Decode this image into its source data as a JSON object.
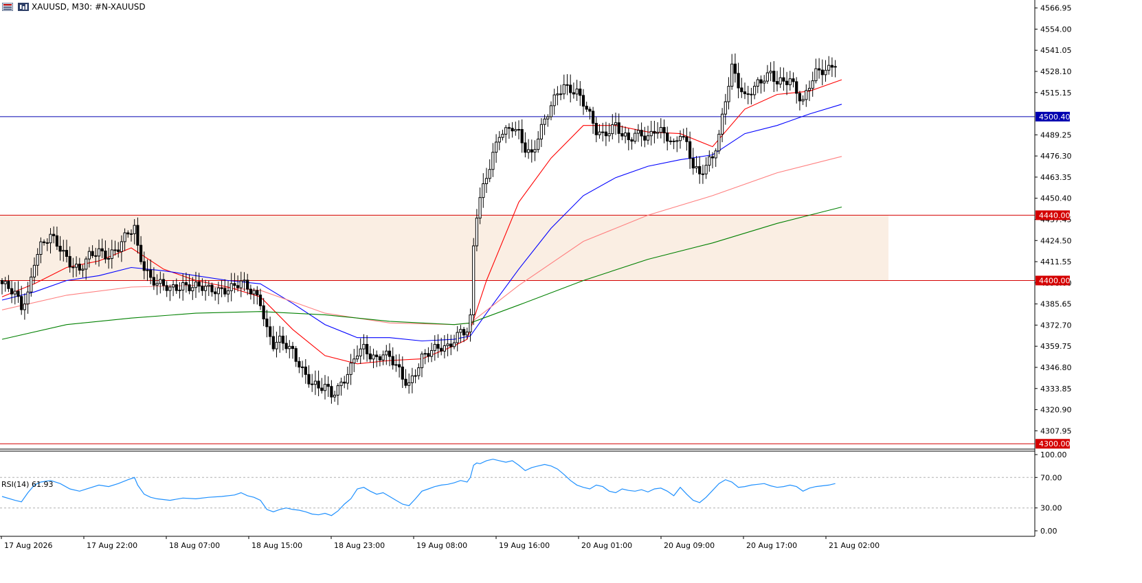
{
  "header": {
    "symbol": "XAUUSD",
    "timeframe": "M30:",
    "instrument": "#N-XAUUSD"
  },
  "icons": [
    "trading-menu-icon",
    "chart-type-icon"
  ],
  "colors": {
    "up_candle": "#ffffff",
    "down_candle": "#000000",
    "ma_fast": "#ff0000",
    "ma_mid": "#0000ff",
    "ma_slow": "#ff7f7f",
    "ma_long": "#008000",
    "rsi_line": "#1e90ff",
    "zone_fill": "#faeee3",
    "level_red": "#d40000",
    "level_blue": "#0000b0"
  },
  "price_axis": {
    "ticks": [
      "4566.95",
      "4554.00",
      "4541.05",
      "4528.10",
      "4515.15",
      "4489.25",
      "4476.30",
      "4463.35",
      "4450.40",
      "4437.45",
      "4424.50",
      "4411.55",
      "4398.60",
      "4385.65",
      "4372.70",
      "4359.75",
      "4346.80",
      "4333.85",
      "4320.90",
      "4307.95"
    ],
    "labels": [
      {
        "text": "4500.40",
        "value": 4500.4,
        "color": "#0000b0"
      },
      {
        "text": "4440.00",
        "value": 4440.0,
        "color": "#d40000"
      },
      {
        "text": "4400.00",
        "value": 4400.0,
        "color": "#d40000"
      },
      {
        "text": "4300.00",
        "value": 4300.0,
        "color": "#d40000"
      }
    ]
  },
  "time_axis": {
    "labels": [
      "17 Aug 2026",
      "17 Aug 22:00",
      "18 Aug 07:00",
      "18 Aug 15:00",
      "18 Aug 23:00",
      "19 Aug 08:00",
      "19 Aug 16:00",
      "20 Aug 01:00",
      "20 Aug 09:00",
      "20 Aug 17:00",
      "21 Aug 02:00"
    ]
  },
  "rsi": {
    "title": "RSI(14) 61.93",
    "ticks": [
      "100.00",
      "70.00",
      "30.00",
      "0.00"
    ],
    "levels": [
      70,
      30
    ]
  },
  "chart_data": {
    "type": "candlestick",
    "symbol": "XAUUSD",
    "timeframe": "M30",
    "ylim": [
      4298,
      4571
    ],
    "rsi_ylim": [
      0,
      100
    ],
    "grid": false,
    "horizontal_lines": [
      4500.4,
      4440.0,
      4400.0,
      4300.0
    ],
    "zone": {
      "from": 4400.0,
      "to": 4440.0
    },
    "close_path": [
      [
        0,
        4398
      ],
      [
        4,
        4391
      ],
      [
        6,
        4384
      ],
      [
        8,
        4392
      ],
      [
        10,
        4413
      ],
      [
        12,
        4421
      ],
      [
        15,
        4426
      ],
      [
        18,
        4420
      ],
      [
        21,
        4412
      ],
      [
        24,
        4406
      ],
      [
        27,
        4414
      ],
      [
        30,
        4418
      ],
      [
        33,
        4416
      ],
      [
        36,
        4420
      ],
      [
        39,
        4428
      ],
      [
        41,
        4432
      ],
      [
        42,
        4420
      ],
      [
        44,
        4409
      ],
      [
        46,
        4402
      ],
      [
        48,
        4398
      ],
      [
        52,
        4394
      ],
      [
        56,
        4398
      ],
      [
        60,
        4396
      ],
      [
        64,
        4394
      ],
      [
        68,
        4395
      ],
      [
        72,
        4396
      ],
      [
        74,
        4398
      ],
      [
        76,
        4395
      ],
      [
        78,
        4393
      ],
      [
        80,
        4388
      ],
      [
        82,
        4370
      ],
      [
        84,
        4360
      ],
      [
        86,
        4362
      ],
      [
        88,
        4360
      ],
      [
        90,
        4357
      ],
      [
        92,
        4350
      ],
      [
        94,
        4342
      ],
      [
        96,
        4336
      ],
      [
        98,
        4333
      ],
      [
        100,
        4335
      ],
      [
        102,
        4331
      ],
      [
        104,
        4335
      ],
      [
        106,
        4340
      ],
      [
        108,
        4346
      ],
      [
        110,
        4355
      ],
      [
        112,
        4358
      ],
      [
        114,
        4355
      ],
      [
        116,
        4353
      ],
      [
        118,
        4356
      ],
      [
        120,
        4352
      ],
      [
        122,
        4347
      ],
      [
        124,
        4340
      ],
      [
        126,
        4337
      ],
      [
        128,
        4345
      ],
      [
        130,
        4353
      ],
      [
        132,
        4355
      ],
      [
        134,
        4357
      ],
      [
        136,
        4359
      ],
      [
        138,
        4360
      ],
      [
        140,
        4365
      ],
      [
        142,
        4369
      ],
      [
        144,
        4368
      ],
      [
        145,
        4375
      ],
      [
        146,
        4420
      ],
      [
        147,
        4440
      ],
      [
        148,
        4450
      ],
      [
        150,
        4465
      ],
      [
        152,
        4478
      ],
      [
        154,
        4490
      ],
      [
        156,
        4490
      ],
      [
        158,
        4493
      ],
      [
        160,
        4490
      ],
      [
        162,
        4482
      ],
      [
        164,
        4478
      ],
      [
        166,
        4488
      ],
      [
        168,
        4497
      ],
      [
        170,
        4506
      ],
      [
        172,
        4515
      ],
      [
        174,
        4520
      ],
      [
        176,
        4518
      ],
      [
        178,
        4515
      ],
      [
        180,
        4508
      ],
      [
        182,
        4500
      ],
      [
        184,
        4492
      ],
      [
        186,
        4490
      ],
      [
        188,
        4493
      ],
      [
        190,
        4495
      ],
      [
        192,
        4488
      ],
      [
        194,
        4485
      ],
      [
        196,
        4490
      ],
      [
        198,
        4491
      ],
      [
        200,
        4488
      ],
      [
        202,
        4492
      ],
      [
        204,
        4490
      ],
      [
        206,
        4487
      ],
      [
        208,
        4483
      ],
      [
        210,
        4492
      ],
      [
        212,
        4484
      ],
      [
        214,
        4470
      ],
      [
        216,
        4463
      ],
      [
        218,
        4470
      ],
      [
        220,
        4476
      ],
      [
        222,
        4490
      ],
      [
        224,
        4512
      ],
      [
        226,
        4530
      ],
      [
        228,
        4519
      ],
      [
        230,
        4511
      ],
      [
        232,
        4517
      ],
      [
        234,
        4522
      ],
      [
        236,
        4525
      ],
      [
        238,
        4526
      ],
      [
        240,
        4520
      ],
      [
        242,
        4521
      ],
      [
        244,
        4524
      ],
      [
        246,
        4517
      ],
      [
        248,
        4510
      ],
      [
        250,
        4519
      ],
      [
        252,
        4526
      ],
      [
        254,
        4528
      ],
      [
        256,
        4530
      ],
      [
        258,
        4535
      ]
    ],
    "moving_averages": [
      {
        "color": "#ff0000",
        "points": [
          [
            0,
            4390
          ],
          [
            10,
            4398
          ],
          [
            20,
            4408
          ],
          [
            30,
            4412
          ],
          [
            40,
            4420
          ],
          [
            50,
            4407
          ],
          [
            60,
            4400
          ],
          [
            70,
            4396
          ],
          [
            80,
            4390
          ],
          [
            90,
            4370
          ],
          [
            100,
            4354
          ],
          [
            110,
            4349
          ],
          [
            120,
            4351
          ],
          [
            130,
            4352
          ],
          [
            140,
            4360
          ],
          [
            144,
            4364
          ],
          [
            150,
            4400
          ],
          [
            160,
            4448
          ],
          [
            170,
            4475
          ],
          [
            180,
            4495
          ],
          [
            190,
            4495
          ],
          [
            200,
            4491
          ],
          [
            210,
            4490
          ],
          [
            215,
            4486
          ],
          [
            220,
            4482
          ],
          [
            230,
            4505
          ],
          [
            240,
            4514
          ],
          [
            250,
            4516
          ],
          [
            260,
            4523
          ]
        ]
      },
      {
        "color": "#0000ff",
        "points": [
          [
            0,
            4388
          ],
          [
            10,
            4393
          ],
          [
            20,
            4400
          ],
          [
            30,
            4403
          ],
          [
            40,
            4408
          ],
          [
            50,
            4406
          ],
          [
            60,
            4403
          ],
          [
            70,
            4400
          ],
          [
            80,
            4398
          ],
          [
            90,
            4386
          ],
          [
            100,
            4373
          ],
          [
            110,
            4365
          ],
          [
            120,
            4365
          ],
          [
            130,
            4363
          ],
          [
            140,
            4364
          ],
          [
            145,
            4366
          ],
          [
            150,
            4380
          ],
          [
            160,
            4407
          ],
          [
            170,
            4432
          ],
          [
            180,
            4452
          ],
          [
            190,
            4463
          ],
          [
            200,
            4470
          ],
          [
            210,
            4474
          ],
          [
            220,
            4477
          ],
          [
            230,
            4490
          ],
          [
            240,
            4495
          ],
          [
            250,
            4502
          ],
          [
            260,
            4508
          ]
        ]
      },
      {
        "color": "#ff7f7f",
        "points": [
          [
            0,
            4382
          ],
          [
            20,
            4391
          ],
          [
            40,
            4396
          ],
          [
            60,
            4397
          ],
          [
            80,
            4394
          ],
          [
            90,
            4387
          ],
          [
            100,
            4380
          ],
          [
            120,
            4374
          ],
          [
            140,
            4373
          ],
          [
            145,
            4374
          ],
          [
            160,
            4397
          ],
          [
            180,
            4424
          ],
          [
            200,
            4440
          ],
          [
            220,
            4452
          ],
          [
            240,
            4466
          ],
          [
            260,
            4476
          ]
        ]
      },
      {
        "color": "#008000",
        "points": [
          [
            0,
            4364
          ],
          [
            20,
            4373
          ],
          [
            40,
            4377
          ],
          [
            60,
            4380
          ],
          [
            80,
            4381
          ],
          [
            100,
            4379
          ],
          [
            120,
            4375
          ],
          [
            140,
            4373
          ],
          [
            145,
            4374
          ],
          [
            160,
            4385
          ],
          [
            180,
            4400
          ],
          [
            200,
            4413
          ],
          [
            220,
            4423
          ],
          [
            240,
            4435
          ],
          [
            250,
            4440
          ],
          [
            260,
            4445
          ]
        ]
      }
    ],
    "rsi_path": [
      [
        0,
        45
      ],
      [
        4,
        40
      ],
      [
        6,
        38
      ],
      [
        8,
        50
      ],
      [
        10,
        60
      ],
      [
        12,
        64
      ],
      [
        15,
        66
      ],
      [
        18,
        62
      ],
      [
        21,
        55
      ],
      [
        24,
        52
      ],
      [
        27,
        56
      ],
      [
        30,
        60
      ],
      [
        33,
        58
      ],
      [
        36,
        62
      ],
      [
        39,
        67
      ],
      [
        41,
        70
      ],
      [
        42,
        60
      ],
      [
        44,
        48
      ],
      [
        46,
        44
      ],
      [
        48,
        42
      ],
      [
        52,
        40
      ],
      [
        56,
        43
      ],
      [
        60,
        42
      ],
      [
        64,
        44
      ],
      [
        68,
        45
      ],
      [
        72,
        47
      ],
      [
        74,
        50
      ],
      [
        76,
        46
      ],
      [
        78,
        44
      ],
      [
        80,
        40
      ],
      [
        82,
        28
      ],
      [
        84,
        25
      ],
      [
        86,
        28
      ],
      [
        88,
        30
      ],
      [
        90,
        28
      ],
      [
        92,
        27
      ],
      [
        94,
        25
      ],
      [
        96,
        22
      ],
      [
        98,
        21
      ],
      [
        100,
        23
      ],
      [
        102,
        20
      ],
      [
        104,
        26
      ],
      [
        106,
        35
      ],
      [
        108,
        42
      ],
      [
        110,
        55
      ],
      [
        112,
        57
      ],
      [
        114,
        52
      ],
      [
        116,
        48
      ],
      [
        118,
        50
      ],
      [
        120,
        45
      ],
      [
        122,
        40
      ],
      [
        124,
        35
      ],
      [
        126,
        33
      ],
      [
        128,
        42
      ],
      [
        130,
        52
      ],
      [
        132,
        55
      ],
      [
        134,
        58
      ],
      [
        136,
        60
      ],
      [
        138,
        61
      ],
      [
        140,
        63
      ],
      [
        142,
        66
      ],
      [
        144,
        64
      ],
      [
        145,
        70
      ],
      [
        146,
        86
      ],
      [
        147,
        89
      ],
      [
        148,
        88
      ],
      [
        150,
        92
      ],
      [
        152,
        94
      ],
      [
        154,
        92
      ],
      [
        156,
        90
      ],
      [
        158,
        92
      ],
      [
        160,
        86
      ],
      [
        162,
        79
      ],
      [
        164,
        83
      ],
      [
        166,
        85
      ],
      [
        168,
        87
      ],
      [
        170,
        85
      ],
      [
        172,
        81
      ],
      [
        174,
        74
      ],
      [
        176,
        66
      ],
      [
        178,
        60
      ],
      [
        180,
        57
      ],
      [
        182,
        55
      ],
      [
        184,
        60
      ],
      [
        186,
        58
      ],
      [
        188,
        52
      ],
      [
        190,
        50
      ],
      [
        192,
        55
      ],
      [
        194,
        53
      ],
      [
        196,
        52
      ],
      [
        198,
        54
      ],
      [
        200,
        51
      ],
      [
        202,
        55
      ],
      [
        204,
        56
      ],
      [
        206,
        52
      ],
      [
        208,
        46
      ],
      [
        210,
        57
      ],
      [
        212,
        48
      ],
      [
        214,
        40
      ],
      [
        216,
        37
      ],
      [
        218,
        44
      ],
      [
        220,
        53
      ],
      [
        222,
        62
      ],
      [
        224,
        67
      ],
      [
        226,
        64
      ],
      [
        228,
        57
      ],
      [
        230,
        58
      ],
      [
        232,
        60
      ],
      [
        234,
        61
      ],
      [
        236,
        62
      ],
      [
        238,
        59
      ],
      [
        240,
        57
      ],
      [
        242,
        58
      ],
      [
        244,
        60
      ],
      [
        246,
        58
      ],
      [
        248,
        52
      ],
      [
        250,
        56
      ],
      [
        252,
        58
      ],
      [
        254,
        59
      ],
      [
        256,
        60
      ],
      [
        258,
        62
      ]
    ]
  }
}
